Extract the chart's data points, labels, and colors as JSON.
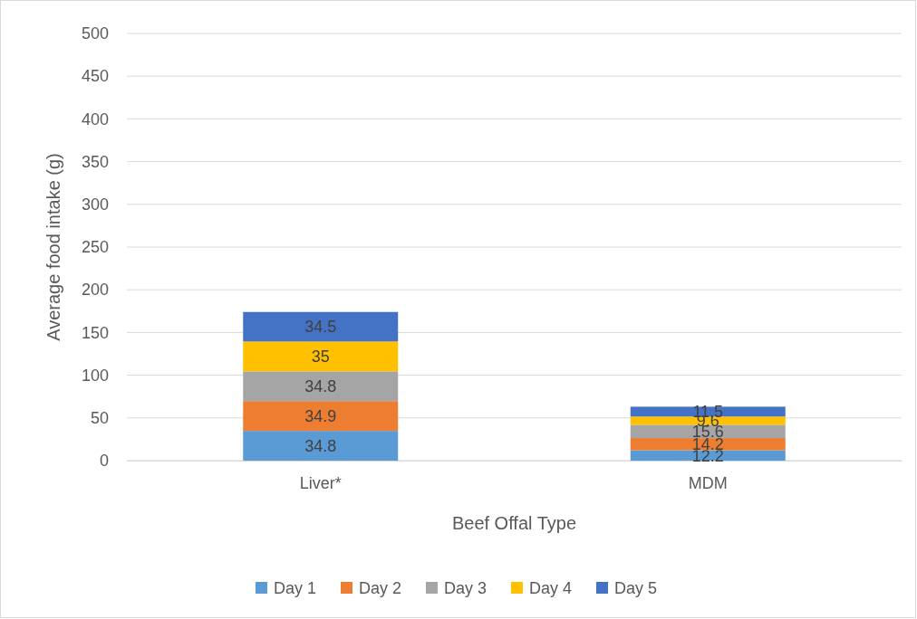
{
  "chart_data": {
    "type": "bar",
    "stacked": true,
    "xlabel": "Beef Offal Type",
    "ylabel": "Average food intake (g)",
    "categories": [
      "Liver*",
      "MDM"
    ],
    "series": [
      {
        "name": "Day 1",
        "color": "#5b9bd5",
        "values": [
          34.8,
          12.2
        ]
      },
      {
        "name": "Day 2",
        "color": "#ed7d31",
        "values": [
          34.9,
          14.2
        ]
      },
      {
        "name": "Day 3",
        "color": "#a5a5a5",
        "values": [
          34.8,
          15.6
        ]
      },
      {
        "name": "Day 4",
        "color": "#ffc000",
        "values": [
          35,
          9.6
        ]
      },
      {
        "name": "Day 5",
        "color": "#4472c4",
        "values": [
          34.5,
          11.5
        ]
      }
    ],
    "ylim": [
      0,
      500
    ],
    "yticks": [
      0,
      50,
      100,
      150,
      200,
      250,
      300,
      350,
      400,
      450,
      500
    ],
    "grid": "y",
    "legend": "bottom",
    "data_labels": true
  }
}
